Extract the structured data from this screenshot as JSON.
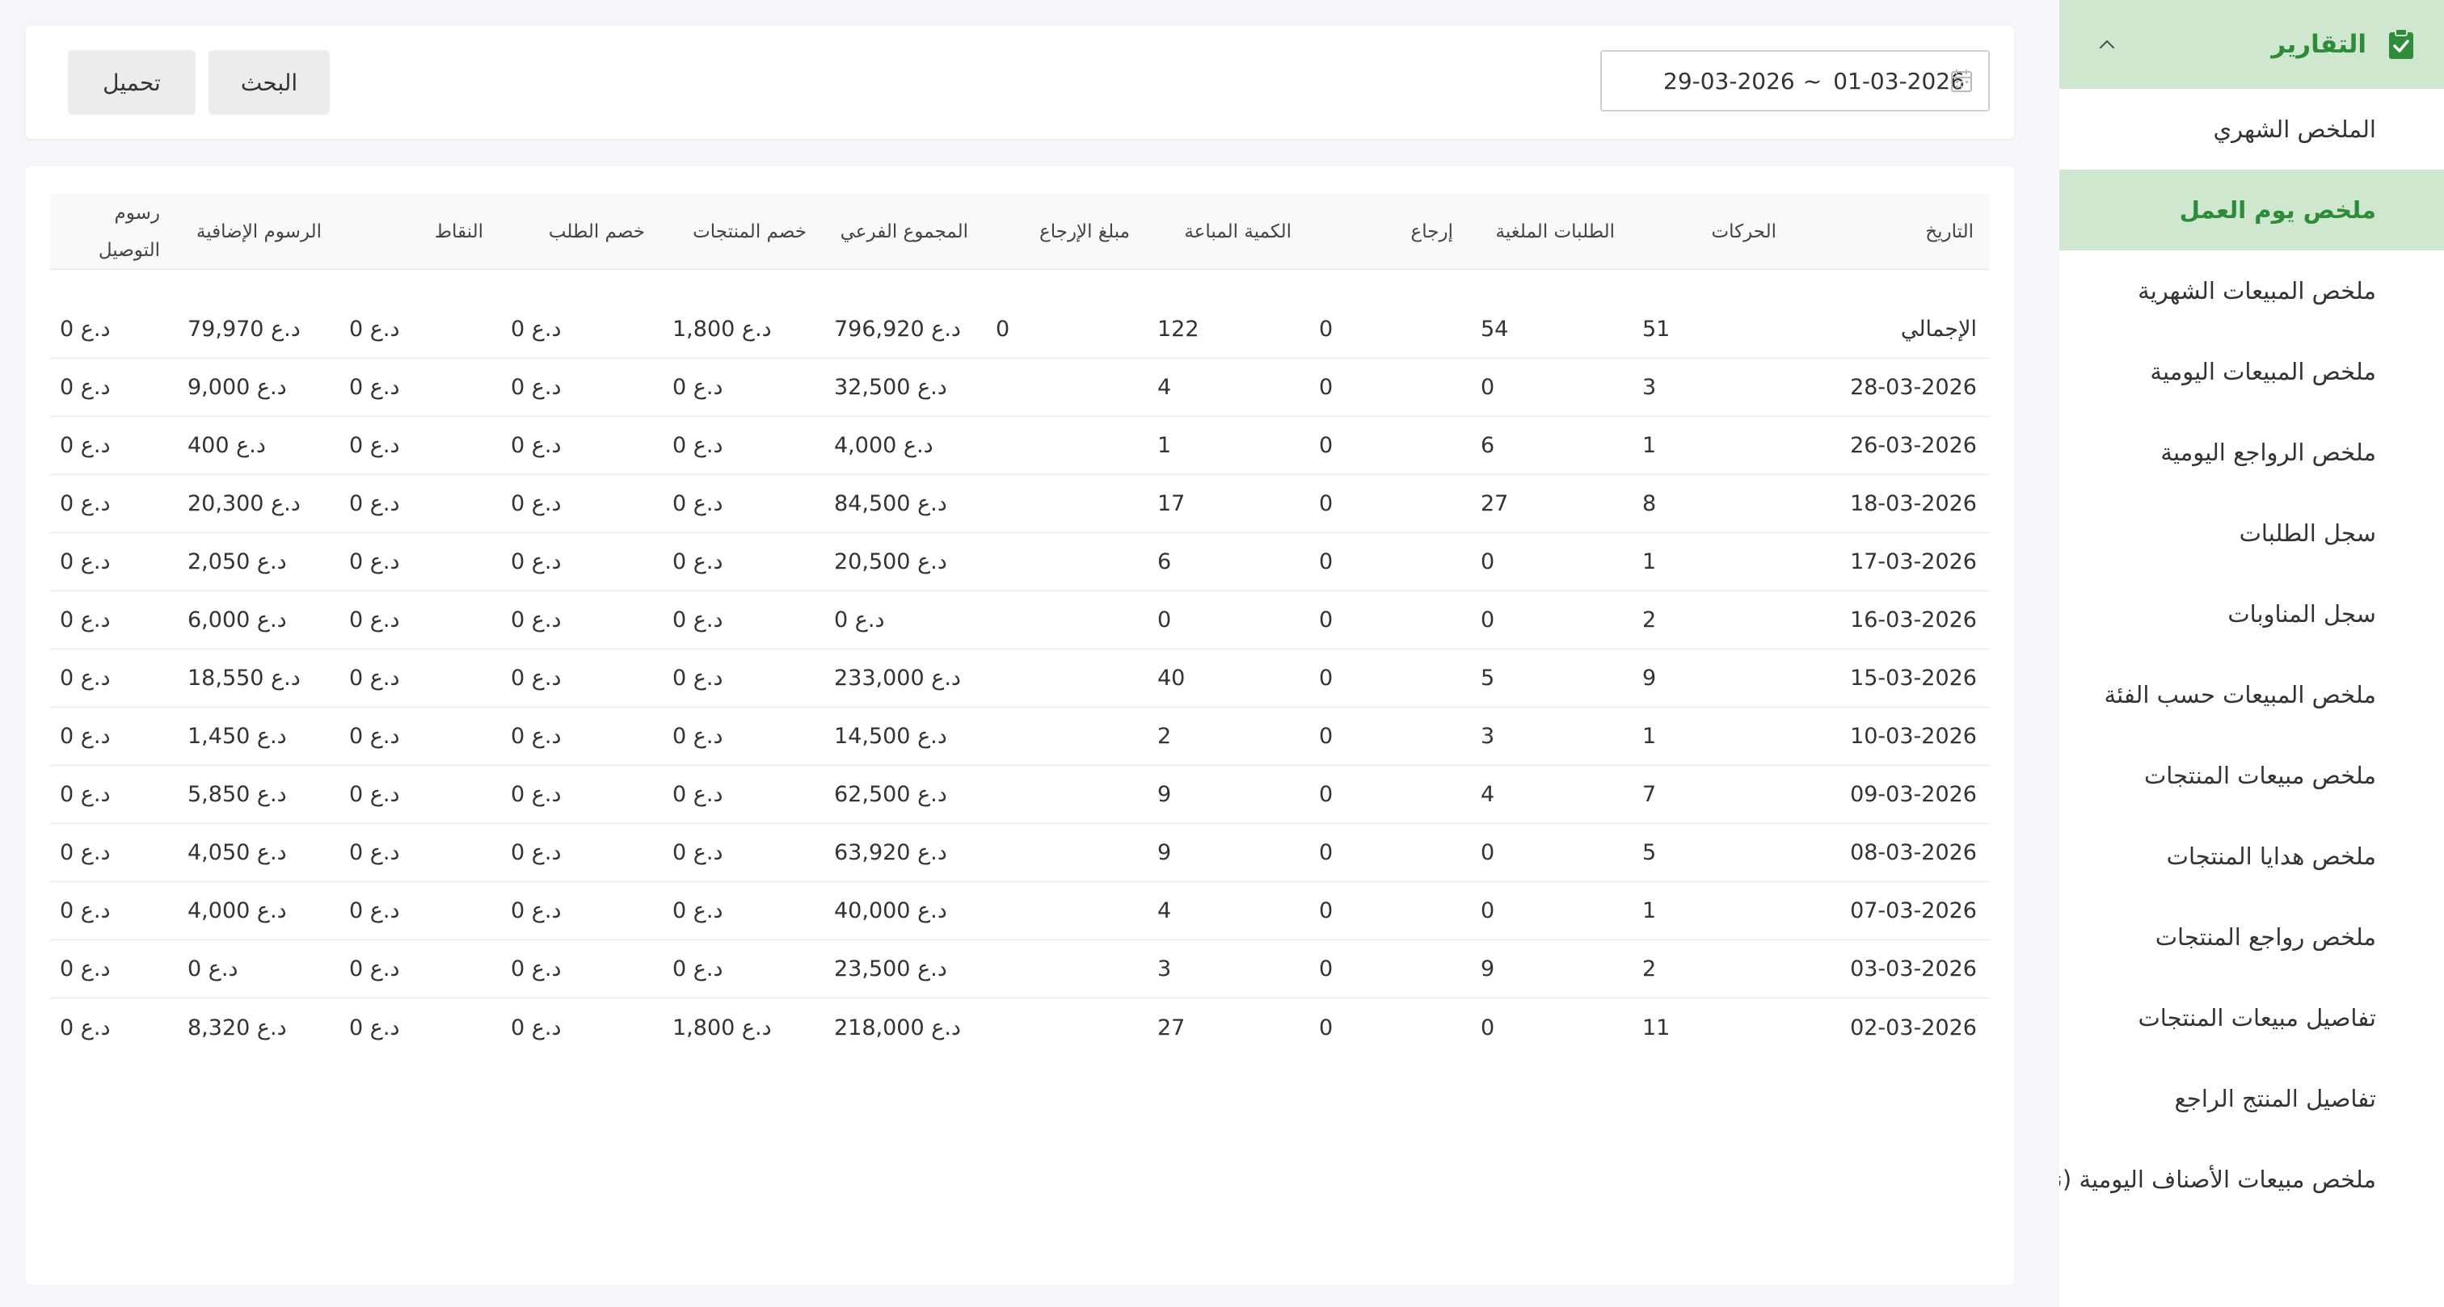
{
  "sidebar": {
    "group": {
      "label": "التقارير",
      "icon": "clipboard-check-icon",
      "expanded": true
    },
    "items": [
      {
        "label": "الملخص الشهري",
        "active": false
      },
      {
        "label": "ملخص يوم العمل",
        "active": true
      },
      {
        "label": "ملخص المبيعات الشهرية",
        "active": false
      },
      {
        "label": "ملخص المبيعات اليومية",
        "active": false
      },
      {
        "label": "ملخص الرواجع اليومية",
        "active": false
      },
      {
        "label": "سجل الطلبات",
        "active": false
      },
      {
        "label": "سجل المناوبات",
        "active": false
      },
      {
        "label": "ملخص المبيعات حسب الفئة",
        "active": false
      },
      {
        "label": "ملخص مبيعات المنتجات",
        "active": false
      },
      {
        "label": "ملخص هدايا المنتجات",
        "active": false
      },
      {
        "label": "ملخص رواجع المنتجات",
        "active": false
      },
      {
        "label": "تفاصيل مبيعات المنتجات",
        "active": false
      },
      {
        "label": "تفاصيل المنتج الراجع",
        "active": false
      },
      {
        "label": "ملخص مبيعات الأصناف اليومية (ند",
        "active": false
      }
    ]
  },
  "filters": {
    "date_start": "01-03-2026",
    "date_separator": "~",
    "date_end": "29-03-2026",
    "search_label": "البحث",
    "download_label": "تحميل"
  },
  "table": {
    "headers": [
      "التاريخ",
      "الحركات",
      "الطلبات الملغية",
      "إرجاع",
      "الكمية المباعة",
      "مبلغ الإرجاع",
      "المجموع الفرعي",
      "خصم المنتجات",
      "خصم الطلب",
      "النقاط",
      "الرسوم الإضافية",
      "رسوم التوصيل"
    ],
    "rows": [
      [
        "الإجمالي",
        "51",
        "54",
        "0",
        "122",
        "0",
        "د.ع 796,920",
        "د.ع 1,800",
        "د.ع 0",
        "د.ع 0",
        "د.ع 79,970",
        "د.ع 0"
      ],
      [
        "28-03-2026",
        "3",
        "0",
        "0",
        "4",
        "",
        "د.ع 32,500",
        "د.ع 0",
        "د.ع 0",
        "د.ع 0",
        "د.ع 9,000",
        "د.ع 0"
      ],
      [
        "26-03-2026",
        "1",
        "6",
        "0",
        "1",
        "",
        "د.ع 4,000",
        "د.ع 0",
        "د.ع 0",
        "د.ع 0",
        "د.ع 400",
        "د.ع 0"
      ],
      [
        "18-03-2026",
        "8",
        "27",
        "0",
        "17",
        "",
        "د.ع 84,500",
        "د.ع 0",
        "د.ع 0",
        "د.ع 0",
        "د.ع 20,300",
        "د.ع 0"
      ],
      [
        "17-03-2026",
        "1",
        "0",
        "0",
        "6",
        "",
        "د.ع 20,500",
        "د.ع 0",
        "د.ع 0",
        "د.ع 0",
        "د.ع 2,050",
        "د.ع 0"
      ],
      [
        "16-03-2026",
        "2",
        "0",
        "0",
        "0",
        "",
        "د.ع 0",
        "د.ع 0",
        "د.ع 0",
        "د.ع 0",
        "د.ع 6,000",
        "د.ع 0"
      ],
      [
        "15-03-2026",
        "9",
        "5",
        "0",
        "40",
        "",
        "د.ع 233,000",
        "د.ع 0",
        "د.ع 0",
        "د.ع 0",
        "د.ع 18,550",
        "د.ع 0"
      ],
      [
        "10-03-2026",
        "1",
        "3",
        "0",
        "2",
        "",
        "د.ع 14,500",
        "د.ع 0",
        "د.ع 0",
        "د.ع 0",
        "د.ع 1,450",
        "د.ع 0"
      ],
      [
        "09-03-2026",
        "7",
        "4",
        "0",
        "9",
        "",
        "د.ع 62,500",
        "د.ع 0",
        "د.ع 0",
        "د.ع 0",
        "د.ع 5,850",
        "د.ع 0"
      ],
      [
        "08-03-2026",
        "5",
        "0",
        "0",
        "9",
        "",
        "د.ع 63,920",
        "د.ع 0",
        "د.ع 0",
        "د.ع 0",
        "د.ع 4,050",
        "د.ع 0"
      ],
      [
        "07-03-2026",
        "1",
        "0",
        "0",
        "4",
        "",
        "د.ع 40,000",
        "د.ع 0",
        "د.ع 0",
        "د.ع 0",
        "د.ع 4,000",
        "د.ع 0"
      ],
      [
        "03-03-2026",
        "2",
        "9",
        "0",
        "3",
        "",
        "د.ع 23,500",
        "د.ع 0",
        "د.ع 0",
        "د.ع 0",
        "د.ع 0",
        "د.ع 0"
      ],
      [
        "02-03-2026",
        "11",
        "0",
        "0",
        "27",
        "",
        "د.ع 218,000",
        "د.ع 1,800",
        "د.ع 0",
        "د.ع 0",
        "د.ع 8,320",
        "د.ع 0"
      ]
    ]
  },
  "colors": {
    "accent_green": "#2e8b3a",
    "active_bg": "#cfe6cf",
    "page_bg": "#f4f6fa"
  }
}
